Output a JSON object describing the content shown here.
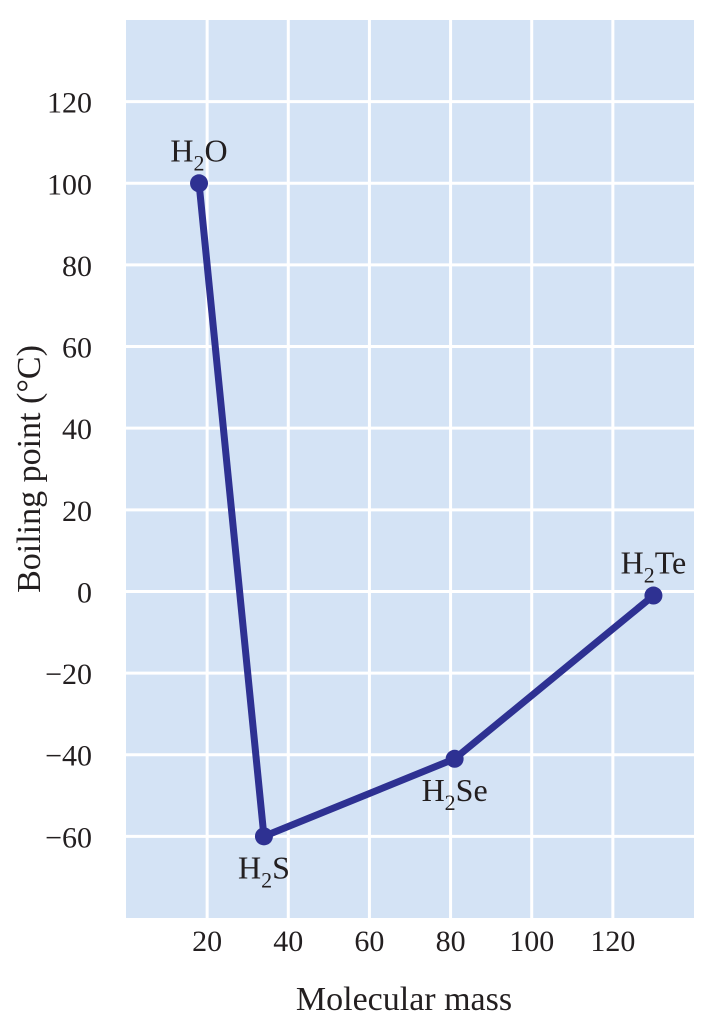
{
  "chart_data": {
    "type": "line",
    "title": "",
    "xlabel": "Molecular mass",
    "ylabel": "Boiling point (°C)",
    "xlim": [
      0,
      140
    ],
    "ylim": [
      -80,
      140
    ],
    "x_ticks": [
      20,
      40,
      60,
      80,
      100,
      120
    ],
    "y_ticks": [
      120,
      100,
      80,
      60,
      40,
      20,
      0,
      -20,
      -40,
      -60
    ],
    "grid": true,
    "legend": "none",
    "series": [
      {
        "points": [
          {
            "x": 18,
            "y": 100,
            "label_main": "H",
            "label_sub": "2",
            "label_rest": "O",
            "label_pos": "above"
          },
          {
            "x": 34,
            "y": -60,
            "label_main": "H",
            "label_sub": "2",
            "label_rest": "S",
            "label_pos": "below"
          },
          {
            "x": 81,
            "y": -41,
            "label_main": "H",
            "label_sub": "2",
            "label_rest": "Se",
            "label_pos": "below"
          },
          {
            "x": 130,
            "y": -1,
            "label_main": "H",
            "label_sub": "2",
            "label_rest": "Te",
            "label_pos": "above"
          }
        ]
      }
    ],
    "colors": {
      "plot_background": "#d4e3f5",
      "grid": "#ffffff",
      "series": "#2e3192",
      "text": "#231f20"
    }
  }
}
